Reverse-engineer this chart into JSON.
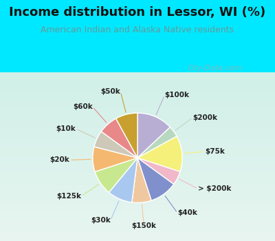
{
  "title": "Income distribution in Lessor, WI (%)",
  "subtitle": "American Indian and Alaska Native residents",
  "watermark": "City-Data.com",
  "labels": [
    "$100k",
    "$200k",
    "$75k",
    "> $200k",
    "$40k",
    "$150k",
    "$30k",
    "$125k",
    "$20k",
    "$10k",
    "$60k",
    "$50k"
  ],
  "values": [
    13,
    4,
    13,
    5,
    10,
    7,
    9,
    9,
    9,
    6,
    7,
    8
  ],
  "colors": [
    "#b8aed4",
    "#b8d8c0",
    "#f5f07a",
    "#f0b8c8",
    "#8090cc",
    "#f0c8a0",
    "#a8c8f0",
    "#c8e890",
    "#f5b870",
    "#cec8b8",
    "#e88888",
    "#c8a030"
  ],
  "background_top": "#00e8ff",
  "background_chart_gradient_top": "#e8f5f0",
  "background_chart_gradient_bottom": "#c8eedd",
  "title_color": "#111111",
  "subtitle_color": "#669999",
  "watermark_color": "#aaaaaa",
  "label_color": "#222222",
  "title_fontsize": 13,
  "subtitle_fontsize": 9,
  "label_fontsize": 7.5,
  "watermark_fontsize": 8
}
